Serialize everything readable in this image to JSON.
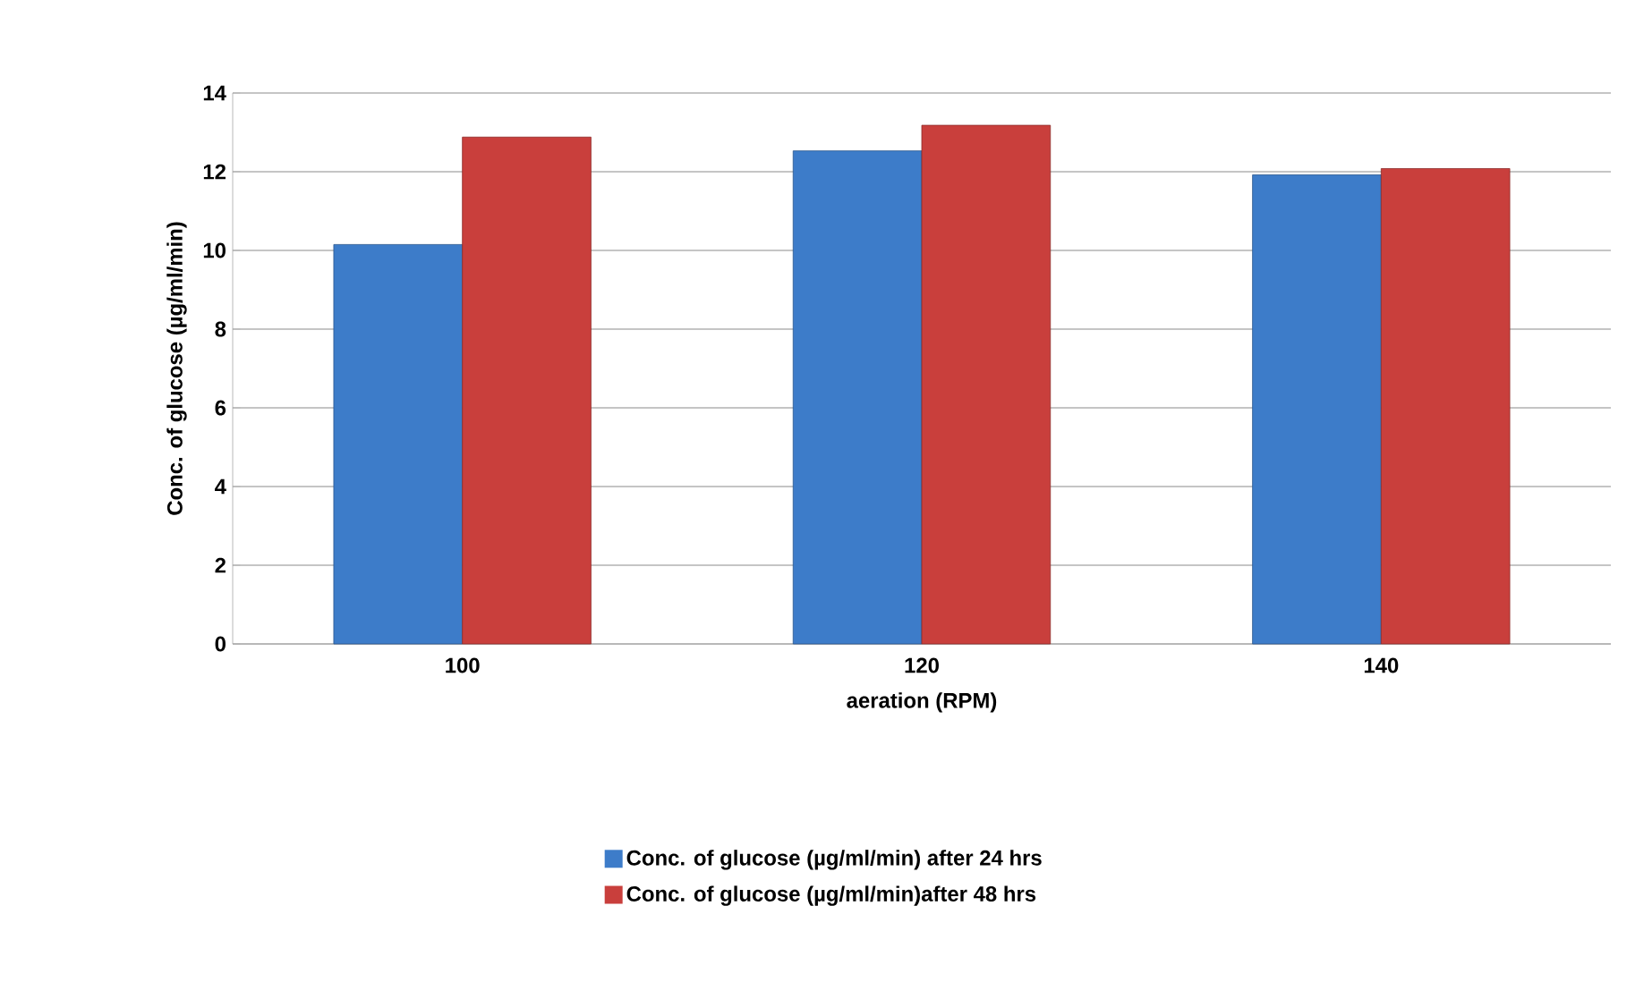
{
  "chart_data": {
    "type": "bar",
    "categories": [
      "100",
      "120",
      "140"
    ],
    "xlabel": "aeration (RPM)",
    "ylabel": "Conc. of glucose (µg/ml/min)",
    "series": [
      {
        "name": "Conc. of glucose (µg/ml/min) after 24 hrs",
        "color": "#3d7cc9",
        "values": [
          10.15,
          12.53,
          11.92
        ]
      },
      {
        "name": "Conc. of glucose (µg/ml/min)after 48 hrs",
        "color": "#c93f3c",
        "values": [
          12.88,
          13.18,
          12.08
        ]
      }
    ],
    "ylim": [
      0,
      14
    ],
    "yticks": [
      0,
      2,
      4,
      6,
      8,
      10,
      12,
      14
    ],
    "grid": "y",
    "legend": "bottom"
  }
}
